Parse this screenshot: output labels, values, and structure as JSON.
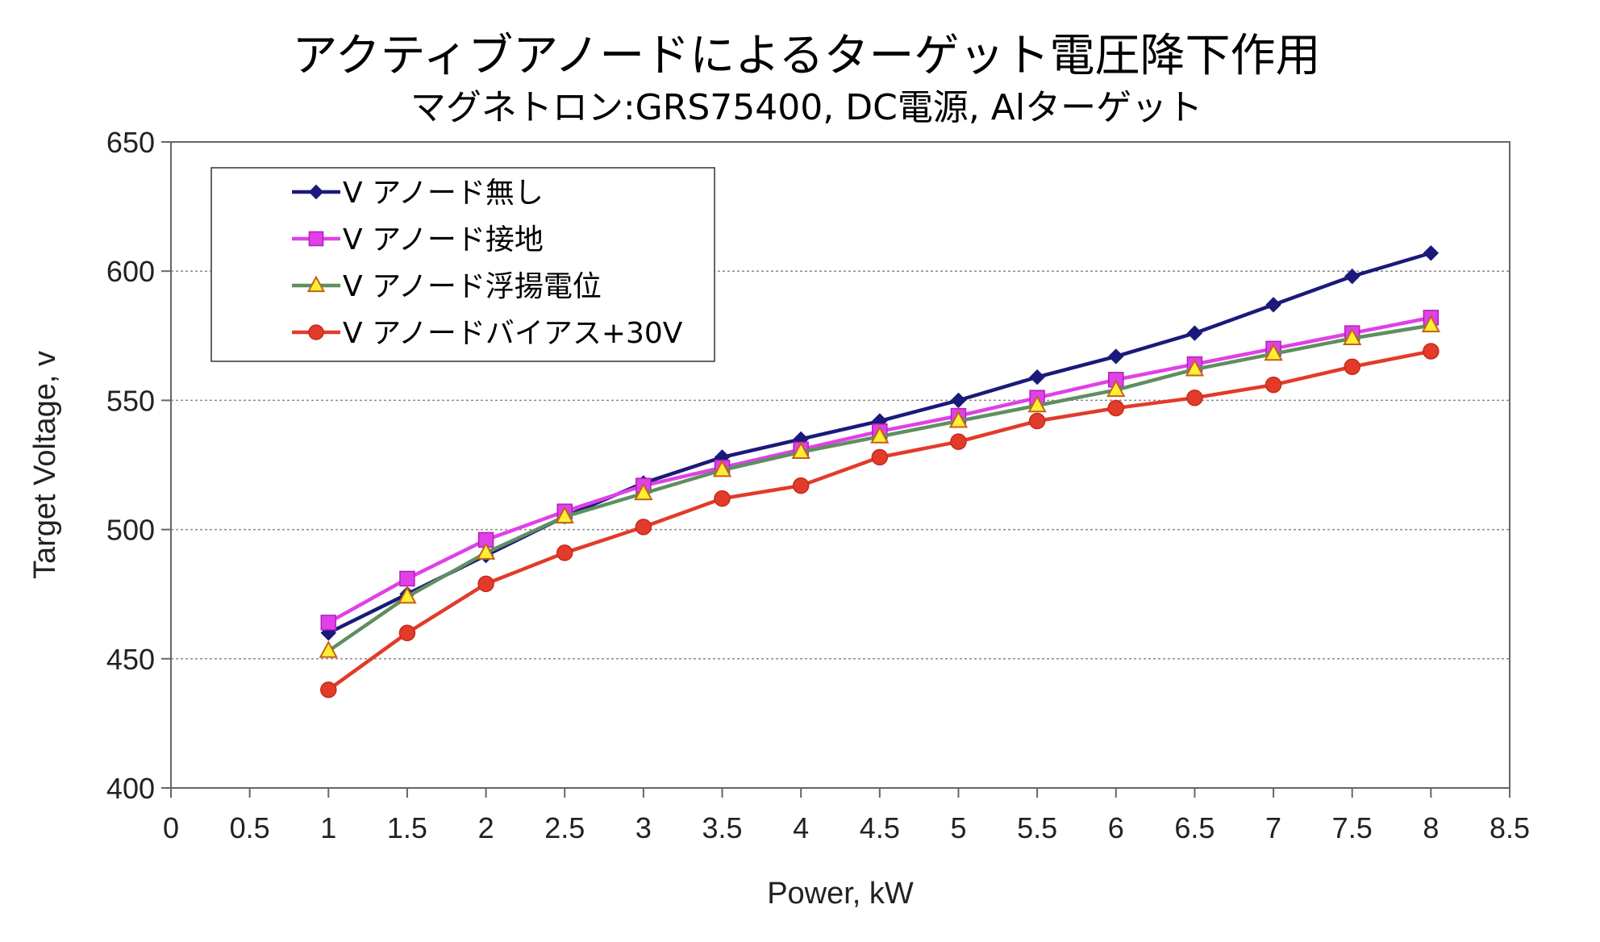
{
  "chart_data": {
    "type": "line",
    "title": "アクティブアノードによるターゲット電圧降下作用",
    "subtitle": "マグネトロン:GRS75400, DC電源, Alターゲット",
    "xlabel": "Power,  kW",
    "ylabel": "Target Voltage,  v",
    "xlim": [
      0,
      8.5
    ],
    "ylim": [
      400,
      650
    ],
    "xticks": [
      "0",
      "0.5",
      "1",
      "1.5",
      "2",
      "2.5",
      "3",
      "3.5",
      "4",
      "4.5",
      "5",
      "5.5",
      "6",
      "6.5",
      "7",
      "7.5",
      "8",
      "8.5"
    ],
    "yticks": [
      "400",
      "450",
      "500",
      "550",
      "600",
      "650"
    ],
    "grid": "horizontal dotted",
    "legend_position": "top-left",
    "x": [
      1,
      1.5,
      2,
      2.5,
      3,
      3.5,
      4,
      4.5,
      5,
      5.5,
      6,
      6.5,
      7,
      7.5,
      8
    ],
    "series": [
      {
        "name": "V  アノード無し",
        "color": "#1a1a7a",
        "marker": "diamond",
        "values": [
          460,
          475,
          490,
          505,
          518,
          528,
          535,
          542,
          550,
          559,
          567,
          576,
          587,
          598,
          607
        ]
      },
      {
        "name": "V  アノード接地",
        "color": "#e040e8",
        "marker": "square",
        "values": [
          464,
          481,
          496,
          507,
          517,
          524,
          531,
          538,
          544,
          551,
          558,
          564,
          570,
          576,
          582
        ]
      },
      {
        "name": "V  アノード浮揚電位",
        "color": "#5e8f60",
        "marker": "triangle",
        "marker_fill": "#ffee33",
        "values": [
          453,
          474,
          491,
          505,
          514,
          523,
          530,
          536,
          542,
          548,
          554,
          562,
          568,
          574,
          579
        ]
      },
      {
        "name": "V  アノードバイアス+30V",
        "color": "#e23b2a",
        "marker": "circle",
        "values": [
          438,
          460,
          479,
          491,
          501,
          512,
          517,
          528,
          534,
          542,
          547,
          551,
          556,
          563,
          569
        ]
      }
    ]
  }
}
